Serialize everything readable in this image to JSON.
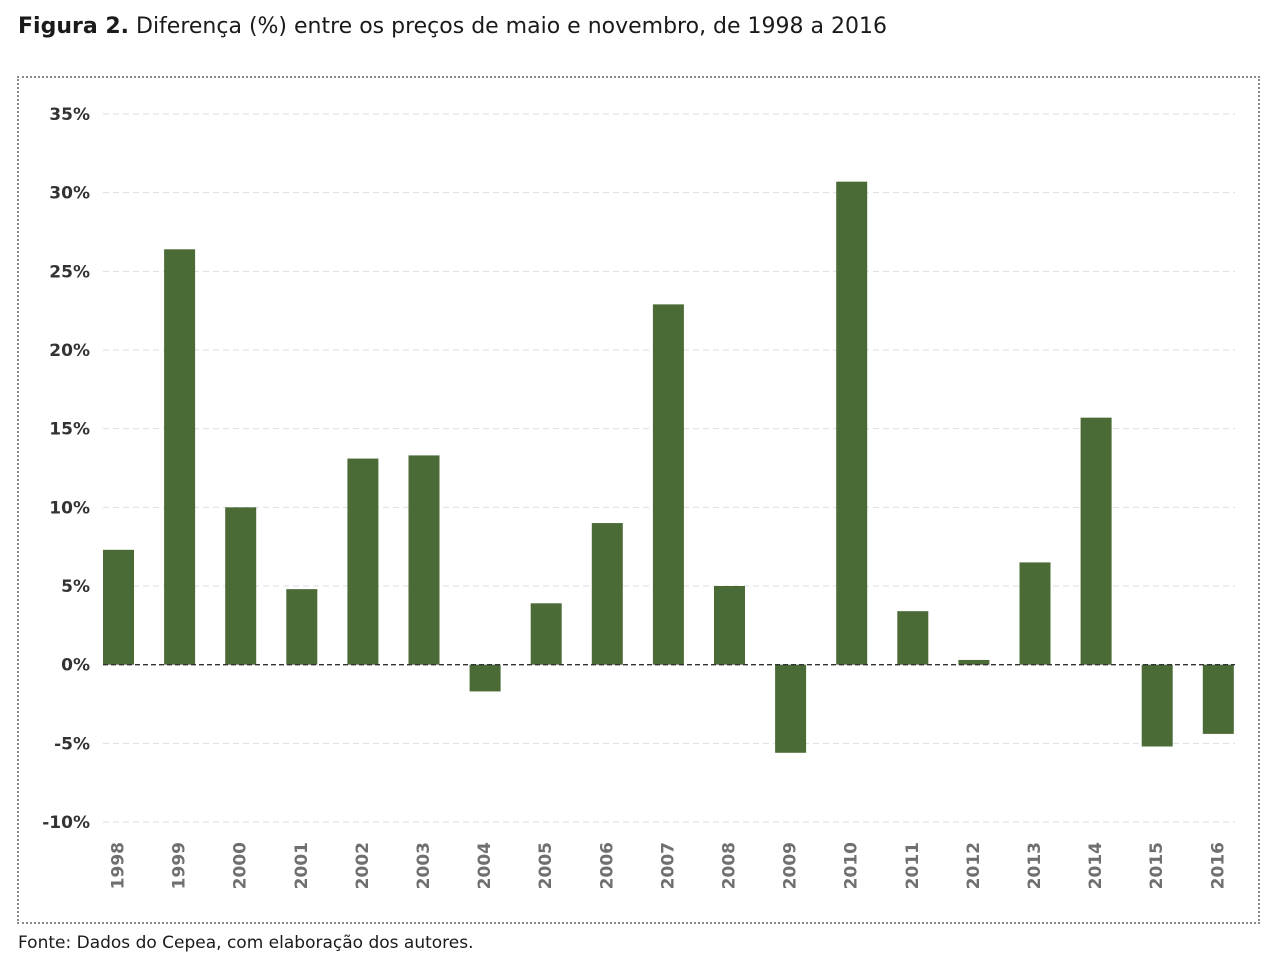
{
  "figure": {
    "label": "Figura 2.",
    "title": "Diferença (%) entre os preços de maio e novembro, de 1998 a 2016",
    "source": "Fonte: Dados do Cepea, com elaboração dos autores."
  },
  "colors": {
    "bar": "#4a6b35",
    "grid": "#dedede",
    "zero_line": "#333333"
  },
  "chart_data": {
    "type": "bar",
    "title": "",
    "xlabel": "",
    "ylabel": "",
    "ylim": [
      -10,
      35
    ],
    "y_ticks": [
      35,
      30,
      25,
      20,
      15,
      10,
      5,
      0,
      -5,
      -10
    ],
    "y_tick_labels": [
      "35%",
      "30%",
      "25%",
      "20%",
      "15%",
      "10%",
      "5%",
      "0%",
      "-5%",
      "-10%"
    ],
    "grid": "horizontal dashed",
    "legend": "none",
    "categories": [
      "1998",
      "1999",
      "2000",
      "2001",
      "2002",
      "2003",
      "2004",
      "2005",
      "2006",
      "2007",
      "2008",
      "2009",
      "2010",
      "2011",
      "2012",
      "2013",
      "2014",
      "2015",
      "2016"
    ],
    "values": [
      7.3,
      26.4,
      10.0,
      4.8,
      13.1,
      13.3,
      -1.7,
      3.9,
      9.0,
      22.9,
      5.0,
      -5.6,
      30.7,
      3.4,
      0.3,
      6.5,
      15.7,
      -5.2,
      -4.4
    ]
  }
}
